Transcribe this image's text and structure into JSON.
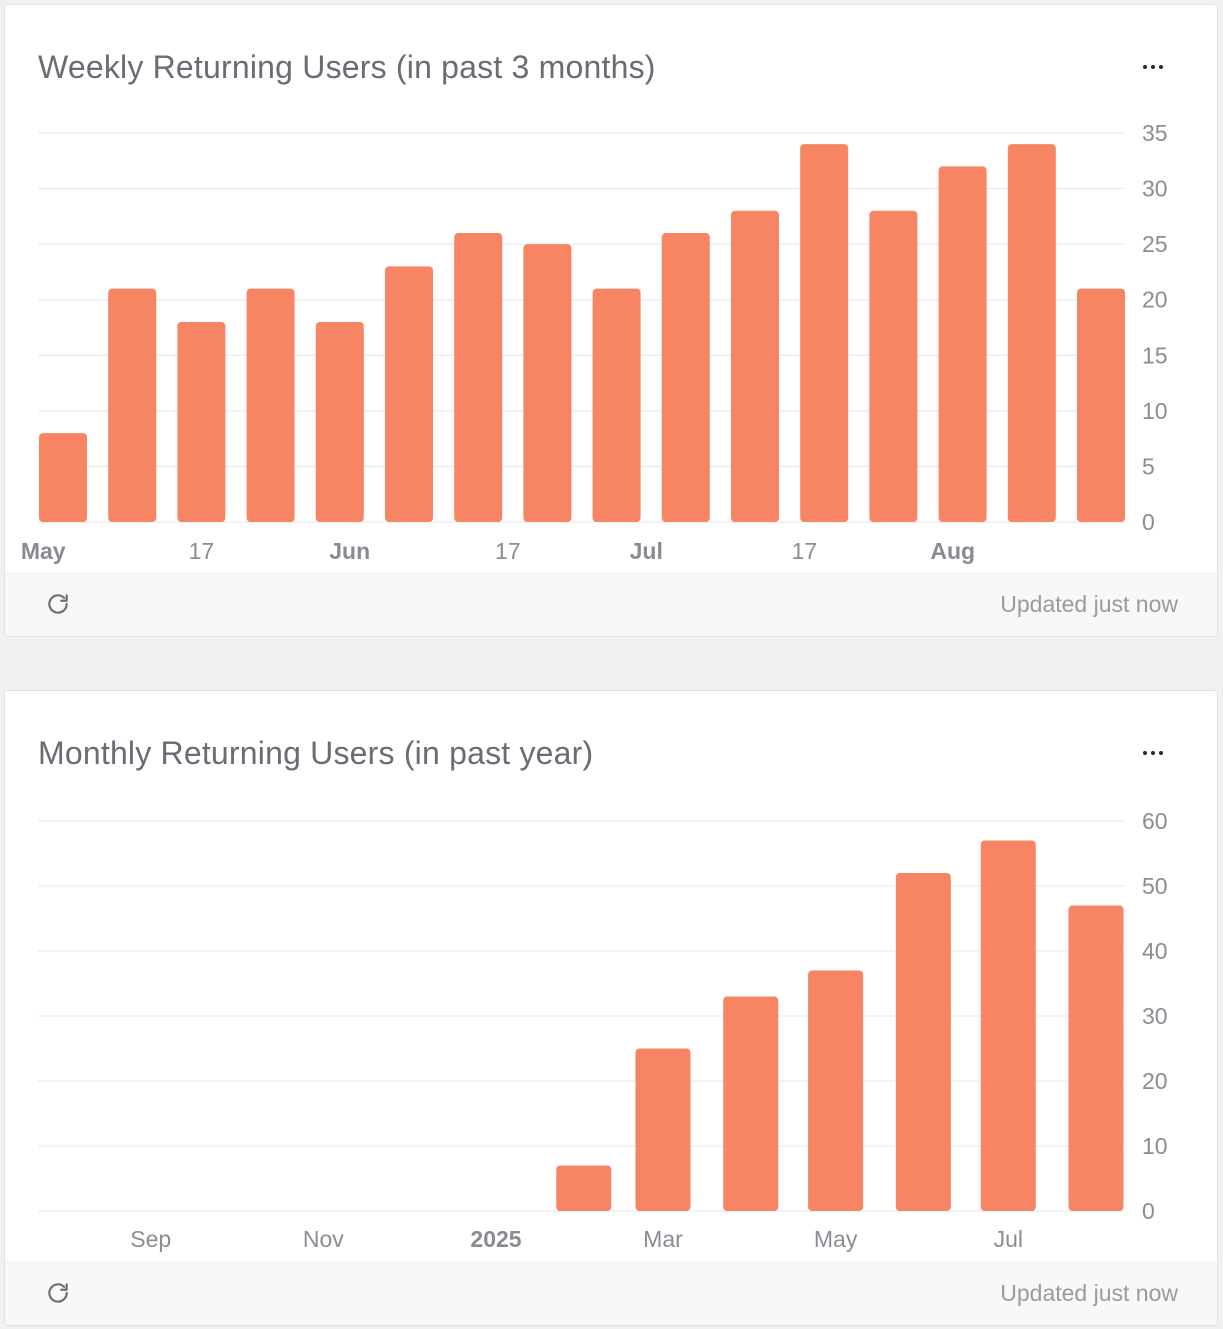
{
  "cards": [
    {
      "title": "Weekly Returning Users (in past 3 months)",
      "more_icon": "more-horizontal-icon",
      "refresh_icon": "refresh-icon",
      "updated_text": "Updated just now",
      "chart_data": {
        "type": "bar",
        "title": "Weekly Returning Users (in past 3 months)",
        "xlabel": "",
        "ylabel": "",
        "x": [
          "2025-05-03",
          "2025-05-10",
          "2025-05-17",
          "2025-05-24",
          "2025-05-31",
          "2025-06-07",
          "2025-06-14",
          "2025-06-21",
          "2025-06-28",
          "2025-07-05",
          "2025-07-12",
          "2025-07-19",
          "2025-07-26",
          "2025-08-02",
          "2025-08-09",
          "2025-08-16"
        ],
        "values": [
          8,
          21,
          18,
          21,
          18,
          23,
          26,
          25,
          21,
          26,
          28,
          34,
          28,
          32,
          34,
          21
        ],
        "ylim": [
          0,
          35
        ],
        "yticks": [
          0,
          5,
          10,
          15,
          20,
          25,
          30,
          35
        ],
        "xticks": [
          {
            "label": "May",
            "date": "2025-05-01",
            "bold": true
          },
          {
            "label": "17",
            "date": "2025-05-17",
            "bold": false
          },
          {
            "label": "Jun",
            "date": "2025-06-01",
            "bold": true
          },
          {
            "label": "17",
            "date": "2025-06-17",
            "bold": false
          },
          {
            "label": "Jul",
            "date": "2025-07-01",
            "bold": true
          },
          {
            "label": "17",
            "date": "2025-07-17",
            "bold": false
          },
          {
            "label": "Aug",
            "date": "2025-08-01",
            "bold": true
          }
        ],
        "y_axis_position": "right",
        "grid": true,
        "legend": "none",
        "bar_color": "#f78563"
      }
    },
    {
      "title": "Monthly Returning Users (in past year)",
      "more_icon": "more-horizontal-icon",
      "refresh_icon": "refresh-icon",
      "updated_text": "Updated just now",
      "chart_data": {
        "type": "bar",
        "title": "Monthly Returning Users (in past year)",
        "xlabel": "",
        "ylabel": "",
        "x": [
          "2024-08-01",
          "2024-09-01",
          "2024-10-01",
          "2024-11-01",
          "2024-12-01",
          "2025-01-01",
          "2025-02-01",
          "2025-03-01",
          "2025-04-01",
          "2025-05-01",
          "2025-06-01",
          "2025-07-01",
          "2025-08-01"
        ],
        "values": [
          0,
          0,
          0,
          0,
          0,
          0,
          7,
          25,
          33,
          37,
          52,
          57,
          47
        ],
        "ylim": [
          0,
          60
        ],
        "yticks": [
          0,
          10,
          20,
          30,
          40,
          50,
          60
        ],
        "xticks": [
          {
            "label": "Sep",
            "date": "2024-09-01",
            "bold": false
          },
          {
            "label": "Nov",
            "date": "2024-11-01",
            "bold": false
          },
          {
            "label": "2025",
            "date": "2025-01-01",
            "bold": true
          },
          {
            "label": "Mar",
            "date": "2025-03-01",
            "bold": false
          },
          {
            "label": "May",
            "date": "2025-05-01",
            "bold": false
          },
          {
            "label": "Jul",
            "date": "2025-07-01",
            "bold": false
          }
        ],
        "y_axis_position": "right",
        "grid": true,
        "legend": "none",
        "bar_color": "#f78563"
      }
    }
  ]
}
